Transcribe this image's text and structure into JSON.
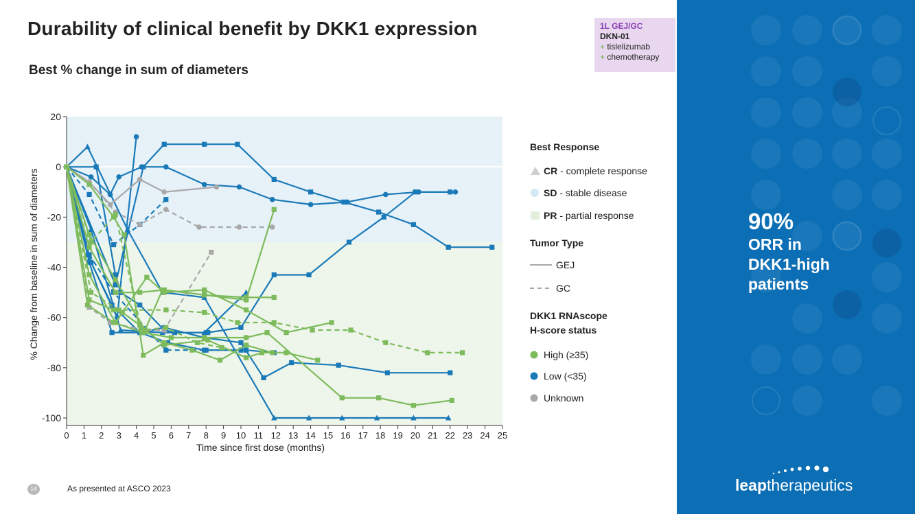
{
  "slide": {
    "title": "Durability of clinical benefit by DKK1 expression",
    "subtitle": "Best % change in sum of diameters",
    "footer": "As presented at ASCO 2023",
    "page_number": "14"
  },
  "tag": {
    "line1": "1L GEJ/GC",
    "line2": "DKN-01",
    "line3_plus": "+",
    "line3": " tislelizumab",
    "line4_plus": "+",
    "line4": " chemotherapy"
  },
  "sidebar": {
    "stat": "90%",
    "stat_label_1": "ORR in",
    "stat_label_2": "DKK1-high",
    "stat_label_3": "patients",
    "logo_bold": "leap",
    "logo_rest": "therapeutics",
    "bg_color": "#0c6fb5"
  },
  "legend": {
    "best_response_title": "Best Response",
    "cr_abbr": "CR",
    "cr_label": " - complete response",
    "sd_abbr": "SD",
    "sd_label": " - stable disease",
    "pr_abbr": "PR",
    "pr_label": " - partial response",
    "tumor_type_title": "Tumor Type",
    "gej_label": "GEJ",
    "gc_label": "GC",
    "dkk1_title_1": "DKK1 RNAscope",
    "dkk1_title_2": "H-score status",
    "high_label": "High (≥35)",
    "low_label": "Low (<35)",
    "unknown_label": "Unknown"
  },
  "colors": {
    "high": "#7dbb5c",
    "low": "#1a7ab8",
    "unknown": "#a8a8a8",
    "sd_band": "#e6f1f8",
    "pr_band": "#eef5ea",
    "purple": "#8a3fb3"
  },
  "chart_data": {
    "type": "line",
    "title": "Best % change in sum of diameters",
    "xlabel": "Time since first dose (months)",
    "ylabel": "% Change from baseline in sum of diameters",
    "xlim": [
      0,
      25
    ],
    "ylim": [
      -103,
      20
    ],
    "xticks": [
      0,
      1,
      2,
      3,
      4,
      5,
      6,
      7,
      8,
      9,
      10,
      11,
      12,
      13,
      14,
      15,
      16,
      17,
      18,
      19,
      20,
      21,
      22,
      23,
      24,
      25
    ],
    "yticks": [
      20,
      0,
      -20,
      -40,
      -60,
      -80,
      -100
    ],
    "bands": [
      {
        "name": "SD - stable disease",
        "from": -30,
        "to": 20
      },
      {
        "name": "PR - partial response",
        "from": -103,
        "to": -30
      }
    ],
    "series": [
      {
        "group": "low",
        "style": "solid",
        "marker": "square",
        "x": [
          0,
          1.7,
          2.8,
          3.1,
          4.2,
          5.6,
          6.2,
          8.1,
          10.0,
          11.9,
          13.9,
          16.2,
          18.2,
          20.0,
          22.0
        ],
        "y": [
          0,
          0,
          -43,
          -50,
          -55,
          -65,
          -66,
          -66,
          -64,
          -43,
          -43,
          -30,
          -20,
          -10,
          -10
        ]
      },
      {
        "group": "low",
        "style": "solid",
        "marker": "triangle",
        "x": [
          0,
          1.2,
          3.5,
          5.5,
          7.9,
          11.9,
          13.9,
          15.8,
          17.8,
          19.9,
          21.9
        ],
        "y": [
          0,
          8,
          -25,
          -50,
          -52,
          -100,
          -100,
          -100,
          -100,
          -100,
          -100
        ]
      },
      {
        "group": "low",
        "style": "solid",
        "marker": "circle",
        "x": [
          0,
          1.4,
          2.5,
          3.0,
          4.3,
          5.7,
          7.9,
          9.9,
          11.8,
          14.0,
          16.1,
          18.3,
          20.2,
          22.3
        ],
        "y": [
          0,
          -4,
          -11,
          -4,
          0,
          0,
          -7,
          -8,
          -13,
          -15,
          -14,
          -11,
          -10,
          -10
        ]
      },
      {
        "group": "low",
        "style": "solid",
        "marker": "square",
        "x": [
          0,
          2.8,
          4.4,
          5.6,
          7.9,
          9.8,
          11.9,
          14.0,
          15.9,
          17.9,
          19.9,
          21.9,
          24.4
        ],
        "y": [
          0,
          -47,
          0,
          9,
          9,
          9,
          -5,
          -10,
          -14,
          -18,
          -23,
          -32,
          -32
        ]
      },
      {
        "group": "low",
        "style": "solid",
        "marker": "square",
        "x": [
          0,
          1.3,
          2.6,
          4.3,
          5.6,
          7.9,
          10.0,
          11.3,
          12.9,
          15.6,
          18.4,
          22.0
        ],
        "y": [
          0,
          -38,
          -66,
          -66,
          -64,
          -68,
          -70,
          -84,
          -78,
          -79,
          -82,
          -82
        ]
      },
      {
        "group": "low",
        "style": "solid",
        "marker": "triangle",
        "x": [
          0,
          1.4,
          3.1,
          5.5,
          7.9,
          10.3
        ],
        "y": [
          0,
          -25,
          -65,
          -66,
          -66,
          -50
        ]
      },
      {
        "group": "low",
        "style": "solid",
        "marker": "circle",
        "x": [
          0,
          1.2,
          2.9,
          4.0
        ],
        "y": [
          0,
          -35,
          -60,
          12
        ]
      },
      {
        "group": "low",
        "style": "solid",
        "marker": "square",
        "x": [
          0,
          1.4,
          2.6,
          4.2,
          5.8,
          7.9,
          10.3,
          11.9
        ],
        "y": [
          0,
          -38,
          -55,
          -66,
          -70,
          -73,
          -73,
          -74
        ]
      },
      {
        "group": "low",
        "style": "dashed",
        "marker": "square",
        "x": [
          0,
          1.3,
          2.7,
          4.2,
          5.7
        ],
        "y": [
          0,
          -11,
          -31,
          -23,
          -13
        ]
      },
      {
        "group": "low",
        "style": "dashed",
        "marker": "square",
        "x": [
          0,
          1.3,
          2.7,
          5.7,
          8.0,
          10.0
        ],
        "y": [
          0,
          -35,
          -50,
          -73,
          -73,
          -73
        ]
      },
      {
        "group": "unknown",
        "style": "solid",
        "marker": "circle",
        "x": [
          0,
          1.3,
          2.5,
          4.2,
          5.6,
          8.6
        ],
        "y": [
          0,
          -6,
          -15,
          -5,
          -10,
          -8
        ]
      },
      {
        "group": "unknown",
        "style": "dashed",
        "marker": "circle",
        "x": [
          0,
          1.3,
          2.8,
          4.2,
          5.7,
          7.6,
          9.9,
          11.8
        ],
        "y": [
          0,
          -6,
          -18,
          -23,
          -17,
          -24,
          -24,
          -24
        ]
      },
      {
        "group": "unknown",
        "style": "dashed",
        "marker": "square",
        "x": [
          0,
          1.3,
          2.5,
          4.4,
          5.6,
          8.3
        ],
        "y": [
          0,
          -56,
          -62,
          -65,
          -65,
          -34
        ]
      },
      {
        "group": "high",
        "style": "solid",
        "marker": "square",
        "x": [
          0,
          1.3,
          2.8,
          4.5,
          5.5,
          7.9,
          10.3,
          11.9
        ],
        "y": [
          0,
          -27,
          -45,
          -65,
          -49,
          -51,
          -53,
          -17
        ]
      },
      {
        "group": "high",
        "style": "solid",
        "marker": "square",
        "x": [
          0,
          1.3,
          2.8,
          4.2,
          5.6,
          7.9,
          10.3,
          11.9
        ],
        "y": [
          0,
          -32,
          -50,
          -50,
          -49,
          -51,
          -52,
          -52
        ]
      },
      {
        "group": "high",
        "style": "solid",
        "marker": "square",
        "x": [
          0,
          1.3,
          2.8,
          4.6,
          5.6,
          7.9,
          10.3,
          12.6,
          15.2
        ],
        "y": [
          0,
          -43,
          -62,
          -44,
          -50,
          -49,
          -57,
          -66,
          -62
        ]
      },
      {
        "group": "high",
        "style": "solid",
        "marker": "square",
        "x": [
          0,
          1.3,
          2.7,
          3.2,
          4.2,
          5.6,
          8.1,
          10.3,
          11.2,
          12.6,
          14.4
        ],
        "y": [
          0,
          -53,
          -57,
          -58,
          -63,
          -71,
          -69,
          -76,
          -74,
          -74,
          -77
        ]
      },
      {
        "group": "high",
        "style": "solid",
        "marker": "square",
        "x": [
          0,
          1.2,
          2.7,
          4.4,
          6.0,
          7.9,
          10.3,
          11.5,
          15.8,
          17.9,
          19.9,
          22.1
        ],
        "y": [
          0,
          -55,
          -62,
          -66,
          -68,
          -68,
          -68,
          -66,
          -92,
          -92,
          -95,
          -93
        ]
      },
      {
        "group": "high",
        "style": "solid",
        "marker": "square",
        "x": [
          0,
          1.3,
          2.7,
          3.3,
          4.4,
          5.6,
          7.2,
          8.8,
          10.3,
          11.8
        ],
        "y": [
          0,
          -7,
          -20,
          -27,
          -75,
          -70,
          -73,
          -77,
          -71,
          -74
        ]
      },
      {
        "group": "high",
        "style": "dashed",
        "marker": "square",
        "x": [
          0,
          1.4,
          3.0,
          5.7,
          7.9,
          9.8,
          11.9,
          14.1,
          16.3,
          18.3,
          20.7,
          22.7
        ],
        "y": [
          0,
          -50,
          -57,
          -57,
          -58,
          -62,
          -62,
          -65,
          -65,
          -70,
          -74,
          -74
        ]
      },
      {
        "group": "high",
        "style": "dashed",
        "marker": "square",
        "x": [
          0,
          1.4,
          2.8,
          4.3,
          5.7,
          7.5,
          8.9
        ],
        "y": [
          0,
          -30,
          -19,
          -65,
          -64,
          -70,
          -72
        ]
      }
    ]
  }
}
